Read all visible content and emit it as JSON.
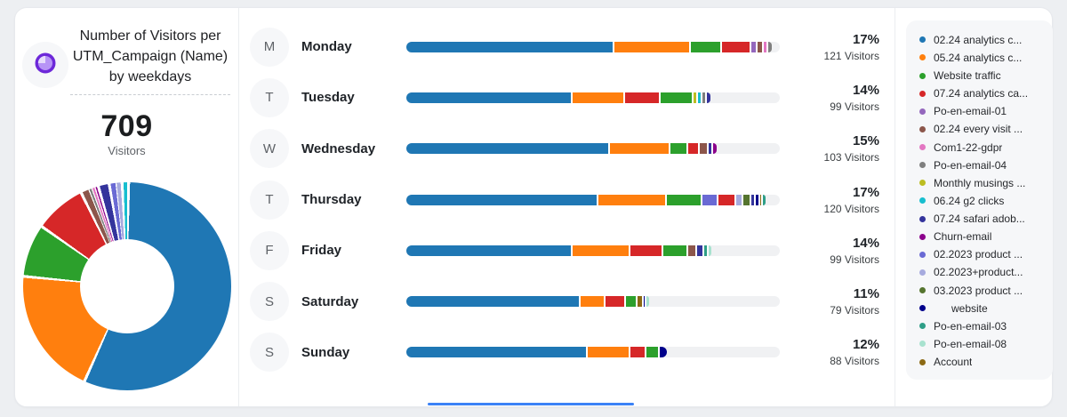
{
  "window": {
    "bg": "#edeff2",
    "card_bg": "#ffffff",
    "divider": "#ebedf0"
  },
  "header": {
    "icon": "donut-chart-icon",
    "title": "Number of Visitors per UTM_Campaign (Name) by weekdays",
    "total": "709",
    "total_label": "Visitors"
  },
  "palette": {
    "blue": "#1f77b4",
    "orange": "#ff7f0e",
    "green": "#2ca02c",
    "red": "#d62728",
    "purple": "#9467bd",
    "brown": "#8c564b",
    "pink": "#e377c2",
    "gray": "#7f7f7f",
    "olive": "#bcbd22",
    "cyan": "#17becf",
    "navy": "#34349c",
    "magenta": "#8b008b",
    "periwinkle": "#6a6ad4",
    "lavender": "#a6aade",
    "darkolive": "#55742f",
    "darknavy": "#00008b",
    "teal": "#2e9e87",
    "mint": "#a8e2cf",
    "goldbrown": "#8b6914"
  },
  "weekdays": [
    {
      "letter": "M",
      "name": "Monday",
      "percent": "17%",
      "visitors": "121 Visitors"
    },
    {
      "letter": "T",
      "name": "Tuesday",
      "percent": "14%",
      "visitors": "99 Visitors"
    },
    {
      "letter": "W",
      "name": "Wednesday",
      "percent": "15%",
      "visitors": "103 Visitors"
    },
    {
      "letter": "T",
      "name": "Thursday",
      "percent": "17%",
      "visitors": "120 Visitors"
    },
    {
      "letter": "F",
      "name": "Friday",
      "percent": "14%",
      "visitors": "99 Visitors"
    },
    {
      "letter": "S",
      "name": "Saturday",
      "percent": "11%",
      "visitors": "79 Visitors"
    },
    {
      "letter": "S",
      "name": "Sunday",
      "percent": "12%",
      "visitors": "88 Visitors"
    }
  ],
  "legend": [
    {
      "label": "02.24 analytics c...",
      "color": "blue"
    },
    {
      "label": "05.24 analytics c...",
      "color": "orange"
    },
    {
      "label": "Website traffic",
      "color": "green"
    },
    {
      "label": "07.24 analytics ca...",
      "color": "red"
    },
    {
      "label": "Po-en-email-01",
      "color": "purple"
    },
    {
      "label": "02.24 every visit ...",
      "color": "brown"
    },
    {
      "label": "Com1-22-gdpr",
      "color": "pink"
    },
    {
      "label": "Po-en-email-04",
      "color": "gray"
    },
    {
      "label": "Monthly musings ...",
      "color": "olive"
    },
    {
      "label": "06.24 g2 clicks",
      "color": "cyan"
    },
    {
      "label": "07.24 safari adob...",
      "color": "navy"
    },
    {
      "label": "Churn-email",
      "color": "magenta"
    },
    {
      "label": "02.2023 product ...",
      "color": "periwinkle"
    },
    {
      "label": "02.2023+product...",
      "color": "lavender"
    },
    {
      "label": "03.2023 product ...",
      "color": "darkolive"
    },
    {
      "label": "      website",
      "color": "darknavy"
    },
    {
      "label": "Po-en-email-03",
      "color": "teal"
    },
    {
      "label": "Po-en-email-08",
      "color": "mint"
    },
    {
      "label": "Account",
      "color": "goldbrown"
    }
  ],
  "chart_data": [
    {
      "type": "pie",
      "donut": true,
      "title": "Number of Visitors per UTM_Campaign (Name) by weekdays",
      "total": 709,
      "unit": "Visitors",
      "legend_position": "right",
      "slices": [
        {
          "name": "02.24 analytics c...",
          "color": "blue",
          "pct": 56.5
        },
        {
          "name": "05.24 analytics c...",
          "color": "orange",
          "pct": 19.8
        },
        {
          "name": "Website traffic",
          "color": "green",
          "pct": 8.2
        },
        {
          "name": "07.24 analytics ca...",
          "color": "red",
          "pct": 8.0
        },
        {
          "name": "02.24 every visit ...",
          "color": "brown",
          "pct": 1.4
        },
        {
          "name": "Po-en-email-04",
          "color": "gray",
          "pct": 0.5
        },
        {
          "name": "Com1-22-gdpr",
          "color": "pink",
          "pct": 0.5
        },
        {
          "name": "Churn-email",
          "color": "magenta",
          "pct": 0.4
        },
        {
          "name": "07.24 safari adob...",
          "color": "navy",
          "pct": 1.7
        },
        {
          "name": "02.2023 product ...",
          "color": "periwinkle",
          "pct": 1.2
        },
        {
          "name": "02.2023+product...",
          "color": "lavender",
          "pct": 0.8
        },
        {
          "name": "06.24 g2 clicks",
          "color": "cyan",
          "pct": 1.0
        }
      ]
    },
    {
      "type": "bar",
      "orientation": "horizontal",
      "stacked": true,
      "categories": [
        "Monday",
        "Tuesday",
        "Wednesday",
        "Thursday",
        "Friday",
        "Saturday",
        "Sunday"
      ],
      "visitors": [
        121,
        99,
        103,
        120,
        99,
        79,
        88
      ],
      "percent_of_total": [
        17,
        14,
        15,
        17,
        14,
        11,
        12
      ],
      "track_full_width_visitors": 121,
      "rows": [
        {
          "day": "Monday",
          "segments": [
            [
              "blue",
              55.8
            ],
            [
              "orange",
              20.5
            ],
            [
              "green",
              8.3
            ],
            [
              "red",
              7.8
            ],
            [
              "purple",
              1.7
            ],
            [
              "brown",
              1.7
            ],
            [
              "pink",
              1.0
            ],
            [
              "gray",
              1.0
            ]
          ]
        },
        {
          "day": "Tuesday",
          "segments": [
            [
              "blue",
              44.5
            ],
            [
              "orange",
              14.0
            ],
            [
              "red",
              9.5
            ],
            [
              "green",
              8.8
            ],
            [
              "olive",
              1.2
            ],
            [
              "cyan",
              1.4
            ],
            [
              "gray",
              1.0
            ],
            [
              "navy",
              1.0
            ]
          ]
        },
        {
          "day": "Wednesday",
          "segments": [
            [
              "blue",
              54.5
            ],
            [
              "orange",
              16.2
            ],
            [
              "green",
              4.8
            ],
            [
              "red",
              3.1
            ],
            [
              "brown",
              2.4
            ],
            [
              "navy",
              1.2
            ],
            [
              "magenta",
              1.0
            ]
          ]
        },
        {
          "day": "Thursday",
          "segments": [
            [
              "blue",
              51.4
            ],
            [
              "orange",
              18.3
            ],
            [
              "green",
              9.5
            ],
            [
              "periwinkle",
              4.3
            ],
            [
              "red",
              4.8
            ],
            [
              "lavender",
              1.9
            ],
            [
              "darkolive",
              2.1
            ],
            [
              "navy",
              1.3
            ],
            [
              "darknavy",
              1.1
            ],
            [
              "goldbrown",
              0.8
            ],
            [
              "teal",
              0.8
            ]
          ]
        },
        {
          "day": "Friday",
          "segments": [
            [
              "blue",
              44.5
            ],
            [
              "orange",
              15.5
            ],
            [
              "red",
              8.8
            ],
            [
              "green",
              6.7
            ],
            [
              "brown",
              2.4
            ],
            [
              "navy",
              1.9
            ],
            [
              "teal",
              1.2
            ],
            [
              "mint",
              0.7
            ]
          ]
        },
        {
          "day": "Saturday",
          "segments": [
            [
              "blue",
              46.7
            ],
            [
              "orange",
              6.7
            ],
            [
              "red",
              5.5
            ],
            [
              "green",
              2.9
            ],
            [
              "goldbrown",
              1.7
            ],
            [
              "darknavy",
              0.8
            ],
            [
              "mint",
              0.7
            ]
          ]
        },
        {
          "day": "Sunday",
          "segments": [
            [
              "blue",
              48.6
            ],
            [
              "orange",
              11.4
            ],
            [
              "red",
              4.3
            ],
            [
              "green",
              3.6
            ],
            [
              "darknavy",
              1.9
            ]
          ]
        }
      ]
    }
  ]
}
